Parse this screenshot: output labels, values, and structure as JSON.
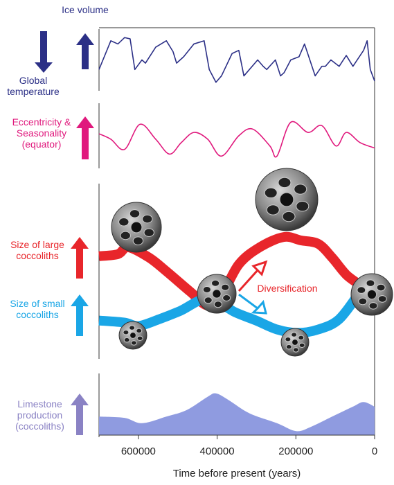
{
  "chart_data": [
    {
      "type": "line",
      "y_label": "Ice volume",
      "y_label_inverse": "Global temperature",
      "xlim": [
        700000,
        0
      ],
      "ylim": [
        0,
        90
      ],
      "x": [
        700000,
        670000,
        652000,
        635000,
        621000,
        609000,
        591000,
        582000,
        556000,
        529000,
        512000,
        503000,
        485000,
        459000,
        433000,
        420000,
        403000,
        389000,
        362000,
        345000,
        332000,
        318000,
        297000,
        283000,
        274000,
        252000,
        239000,
        230000,
        213000,
        192000,
        178000,
        151000,
        134000,
        125000,
        111000,
        90000,
        72000,
        55000,
        28000,
        19000,
        11000,
        0
      ],
      "series": [
        {
          "name": "Ice volume",
          "color": "#2b2f86",
          "values": [
            30,
            75,
            70,
            80,
            78,
            30,
            45,
            40,
            65,
            75,
            58,
            40,
            50,
            70,
            75,
            30,
            10,
            20,
            55,
            60,
            20,
            30,
            45,
            35,
            30,
            45,
            20,
            25,
            45,
            50,
            70,
            20,
            35,
            35,
            45,
            35,
            52,
            35,
            60,
            75,
            30,
            12
          ]
        }
      ]
    },
    {
      "type": "line",
      "y_label": "Eccentricity & Seasonality (equator)",
      "xlim": [
        700000,
        0
      ],
      "ylim": [
        0,
        90
      ],
      "x": [
        700000,
        670000,
        635000,
        596000,
        556000,
        521000,
        491000,
        459000,
        424000,
        389000,
        345000,
        310000,
        266000,
        248000,
        213000,
        169000,
        134000,
        98000,
        72000,
        37000,
        0
      ],
      "series": [
        {
          "name": "Eccentricity",
          "color": "#e0197d",
          "values": [
            48,
            40,
            25,
            62,
            40,
            18,
            35,
            50,
            40,
            15,
            45,
            55,
            30,
            15,
            65,
            50,
            60,
            30,
            50,
            35,
            27
          ]
        }
      ]
    },
    {
      "type": "line",
      "annotation": "Diversification",
      "xlim": [
        700000,
        0
      ],
      "ylim": [
        0,
        250
      ],
      "series": [
        {
          "name": "Size of large coccoliths",
          "color": "#e8262b",
          "x": [
            700000,
            652000,
            626000,
            573000,
            529000,
            468000,
            424000,
            389000,
            345000,
            292000,
            231000,
            187000,
            143000,
            108000,
            72000,
            37000
          ],
          "values": [
            147,
            150,
            160,
            145,
            125,
            95,
            75,
            90,
            135,
            160,
            175,
            170,
            165,
            145,
            120,
            105
          ]
        },
        {
          "name": "Size of small coccoliths",
          "color": "#1aa6e6",
          "x": [
            700000,
            635000,
            600000,
            547000,
            494000,
            424000,
            354000,
            301000,
            248000,
            196000,
            143000,
            90000,
            37000
          ],
          "values": [
            53,
            50,
            45,
            55,
            67,
            85,
            65,
            53,
            40,
            35,
            40,
            55,
            95
          ]
        }
      ]
    },
    {
      "type": "area",
      "y_label": "Limestone production (coccoliths)",
      "xlim": [
        700000,
        0
      ],
      "ylim": [
        0,
        90
      ],
      "x": [
        700000,
        635000,
        591000,
        529000,
        477000,
        424000,
        403000,
        371000,
        318000,
        248000,
        199000,
        160000,
        108000,
        55000,
        28000,
        0
      ],
      "series": [
        {
          "name": "Limestone production",
          "color": "#8f9be0",
          "values": [
            28,
            26,
            18,
            28,
            38,
            58,
            63,
            53,
            33,
            18,
            6,
            13,
            28,
            43,
            50,
            43
          ]
        }
      ],
      "x_label": "Time before present (years)",
      "xticks": [
        600000,
        400000,
        200000,
        0
      ]
    }
  ]
}
